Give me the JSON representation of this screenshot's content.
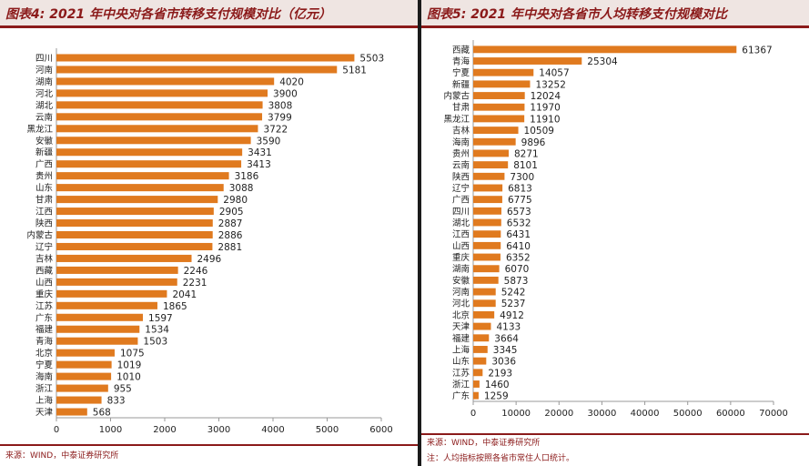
{
  "colors": {
    "bar": "#e07a1f",
    "title": "#8b1a1a",
    "axis": "#999999",
    "text": "#222222"
  },
  "left": {
    "title": "图表4: 2021 年中央对各省市转移支付规模对比（亿元）",
    "source": "来源：WIND，中泰证券研究所"
  },
  "right": {
    "title": "图表5: 2021 年中央对各省市人均转移支付规模对比",
    "source": "来源：WIND，中泰证券研究所",
    "note": "注：人均指标按照各省市常住人口统计。"
  },
  "chart_data": [
    {
      "type": "bar",
      "orientation": "horizontal",
      "title": "图表4: 2021 年中央对各省市转移支付规模对比（亿元）",
      "xlim": [
        0,
        6000
      ],
      "xticks": [
        0,
        1000,
        2000,
        3000,
        4000,
        5000,
        6000
      ],
      "categories": [
        "四川",
        "河南",
        "湖南",
        "河北",
        "湖北",
        "云南",
        "黑龙江",
        "安徽",
        "新疆",
        "广西",
        "贵州",
        "山东",
        "甘肃",
        "江西",
        "陕西",
        "内蒙古",
        "辽宁",
        "吉林",
        "西藏",
        "山西",
        "重庆",
        "江苏",
        "广东",
        "福建",
        "青海",
        "北京",
        "宁夏",
        "海南",
        "浙江",
        "上海",
        "天津"
      ],
      "values": [
        5503,
        5181,
        4020,
        3900,
        3808,
        3799,
        3722,
        3590,
        3431,
        3413,
        3186,
        3088,
        2980,
        2905,
        2887,
        2886,
        2881,
        2496,
        2246,
        2231,
        2041,
        1865,
        1597,
        1534,
        1503,
        1075,
        1019,
        1010,
        955,
        833,
        568
      ]
    },
    {
      "type": "bar",
      "orientation": "horizontal",
      "title": "图表5: 2021 年中央对各省市人均转移支付规模对比",
      "xlim": [
        0,
        70000
      ],
      "xticks": [
        0,
        10000,
        20000,
        30000,
        40000,
        50000,
        60000,
        70000
      ],
      "categories": [
        "西藏",
        "青海",
        "宁夏",
        "新疆",
        "内蒙古",
        "甘肃",
        "黑龙江",
        "吉林",
        "海南",
        "贵州",
        "云南",
        "陕西",
        "辽宁",
        "广西",
        "四川",
        "湖北",
        "江西",
        "山西",
        "重庆",
        "湖南",
        "安徽",
        "河南",
        "河北",
        "北京",
        "天津",
        "福建",
        "上海",
        "山东",
        "江苏",
        "浙江",
        "广东"
      ],
      "values": [
        61367,
        25304,
        14057,
        13252,
        12024,
        11970,
        11910,
        10509,
        9896,
        8271,
        8101,
        7300,
        6813,
        6775,
        6573,
        6532,
        6431,
        6410,
        6352,
        6070,
        5873,
        5242,
        5237,
        4912,
        4133,
        3664,
        3345,
        3036,
        2193,
        1460,
        1259
      ]
    }
  ]
}
